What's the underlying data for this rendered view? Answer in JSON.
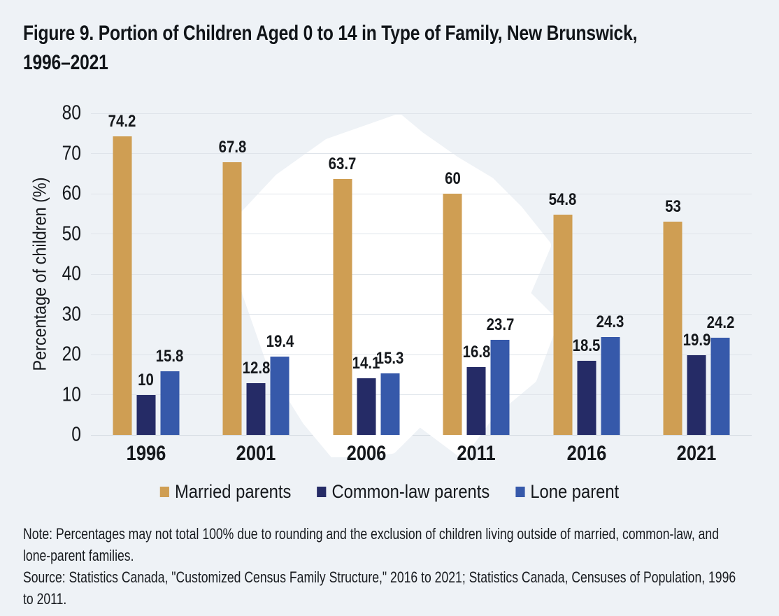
{
  "page": {
    "title_lines": [
      "Figure 9. Portion of Children Aged 0 to 14 in Type of Family, New Brunswick,",
      "1996–2021"
    ],
    "note_lines": [
      "Note: Percentages may not total 100% due to rounding and the exclusion of children living outside of married, common-law, and",
      "lone-parent families."
    ],
    "source_lines": [
      "Source: Statistics Canada, \"Customized Census Family Structure,\" 2016 to 2021; Statistics Canada, Censuses of Population, 1996",
      "to 2011."
    ]
  },
  "colors": {
    "background": "#eef2f6",
    "married": "#cf9e53",
    "common_law": "#252b66",
    "lone_parent": "#3659aa",
    "gridline": "#dfe4ea",
    "axis_line": "#d3dae1",
    "text": "#15181c",
    "map_silhouette": "#ffffff"
  },
  "chart_data": {
    "type": "bar",
    "title": "Figure 9. Portion of Children Aged 0 to 14 in Type of Family, New Brunswick, 1996–2021",
    "xlabel": "",
    "ylabel": "Percentage of children (%)",
    "ylim": [
      0,
      80
    ],
    "ytick_step": 10,
    "grid": true,
    "legend_position": "bottom",
    "background_motif": "white silhouette map of New Brunswick behind bars",
    "categories": [
      "1996",
      "2001",
      "2006",
      "2011",
      "2016",
      "2021"
    ],
    "series": [
      {
        "name": "Married parents",
        "color": "#cf9e53",
        "values": [
          74.2,
          67.8,
          63.7,
          60,
          54.8,
          53
        ]
      },
      {
        "name": "Common-law parents",
        "color": "#252b66",
        "values": [
          10,
          12.8,
          14.1,
          16.8,
          18.5,
          19.9
        ]
      },
      {
        "name": "Lone parent",
        "color": "#3659aa",
        "values": [
          15.8,
          19.4,
          15.3,
          23.7,
          24.3,
          24.2
        ]
      }
    ]
  }
}
